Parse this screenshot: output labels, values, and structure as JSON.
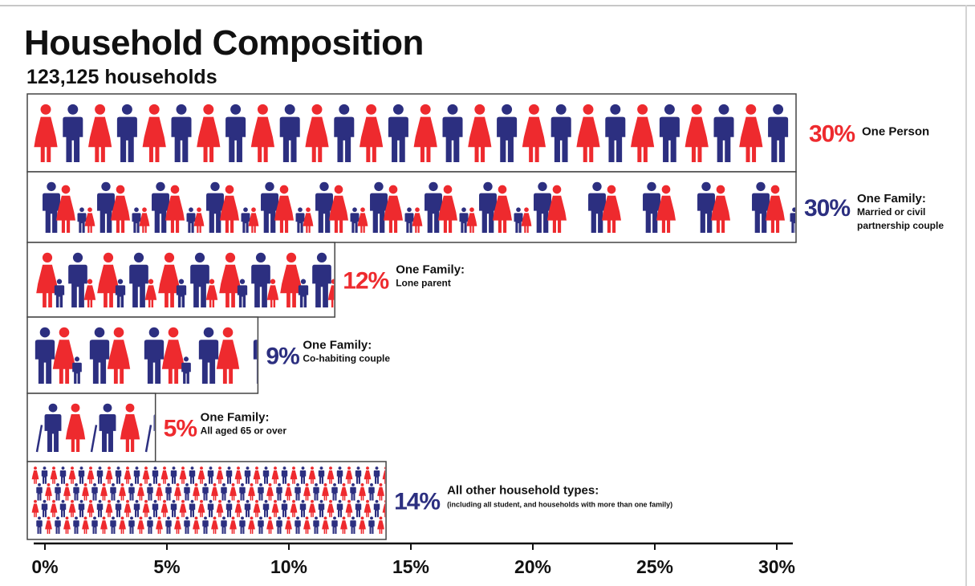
{
  "title": "Household Composition",
  "subtitle": "123,125 households",
  "colors": {
    "red": "#ee2a2e",
    "blue": "#2c2f80",
    "text": "#111111",
    "frame": "#444444"
  },
  "chart_data": {
    "type": "bar",
    "orientation": "horizontal",
    "title": "Household Composition",
    "subtitle": "123,125 households",
    "xlim": [
      0,
      30
    ],
    "x_ticks": [
      "0%",
      "5%",
      "10%",
      "15%",
      "20%",
      "25%",
      "30%"
    ],
    "categories": [
      {
        "pct_label": "30%",
        "value": 30,
        "label": "One Person",
        "sublabel": "",
        "color": "red",
        "icons": "single"
      },
      {
        "pct_label": "30%",
        "value": 30,
        "label": "One Family:",
        "sublabel": "Married or civil partnership couple",
        "color": "blue",
        "icons": "couple"
      },
      {
        "pct_label": "12%",
        "value": 12,
        "label": "One Family:",
        "sublabel": "Lone parent",
        "color": "red",
        "icons": "parent"
      },
      {
        "pct_label": "9%",
        "value": 9,
        "label": "One Family:",
        "sublabel": "Co-habiting couple",
        "color": "blue",
        "icons": "cohab"
      },
      {
        "pct_label": "5%",
        "value": 5,
        "label": "One Family:",
        "sublabel": "All aged 65 or over",
        "color": "red",
        "icons": "elder"
      },
      {
        "pct_label": "14%",
        "value": 14,
        "label": "All other household types:",
        "sublabel": "(including all student, and households with more than one family)",
        "color": "blue",
        "icons": "crowd"
      }
    ]
  }
}
